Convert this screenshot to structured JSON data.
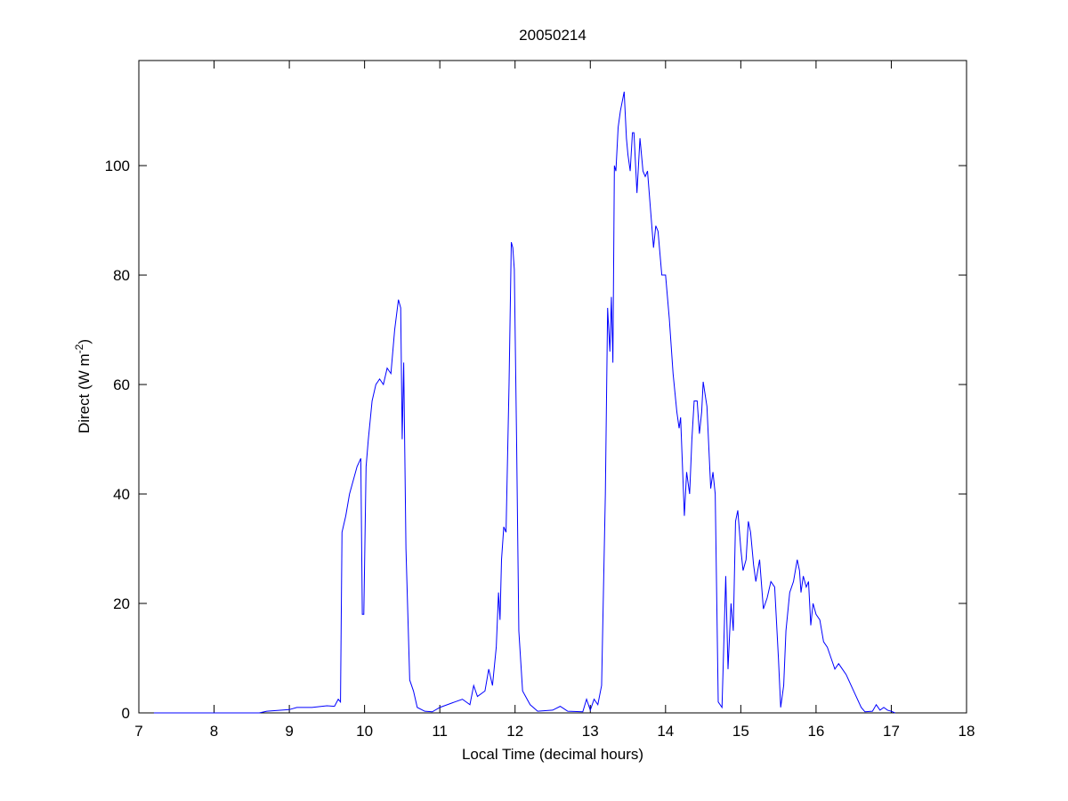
{
  "chart_data": {
    "type": "line",
    "title": "20050214",
    "xlabel": "Local Time (decimal hours)",
    "ylabel": [
      "Direct (W m",
      "-2",
      ")"
    ],
    "xlim": [
      7,
      18
    ],
    "ylim": [
      0,
      119.2
    ],
    "xticks": [
      7,
      8,
      9,
      10,
      11,
      12,
      13,
      14,
      15,
      16,
      17,
      18
    ],
    "yticks": [
      0,
      20,
      40,
      60,
      80,
      100
    ],
    "grid": false,
    "x": [
      7.2,
      8.6,
      8.7,
      9.0,
      9.1,
      9.3,
      9.5,
      9.6,
      9.65,
      9.68,
      9.7,
      9.75,
      9.8,
      9.9,
      9.95,
      9.97,
      9.99,
      10.02,
      10.05,
      10.1,
      10.15,
      10.2,
      10.25,
      10.3,
      10.35,
      10.4,
      10.45,
      10.48,
      10.5,
      10.52,
      10.55,
      10.6,
      10.65,
      10.7,
      10.8,
      10.9,
      11.0,
      11.2,
      11.3,
      11.4,
      11.45,
      11.5,
      11.6,
      11.65,
      11.7,
      11.75,
      11.78,
      11.8,
      11.82,
      11.85,
      11.88,
      11.92,
      11.95,
      11.97,
      11.99,
      12.02,
      12.05,
      12.1,
      12.2,
      12.3,
      12.5,
      12.6,
      12.7,
      12.9,
      12.95,
      13.0,
      13.05,
      13.1,
      13.15,
      13.2,
      13.23,
      13.26,
      13.28,
      13.3,
      13.32,
      13.34,
      13.37,
      13.4,
      13.45,
      13.48,
      13.5,
      13.53,
      13.56,
      13.58,
      13.62,
      13.66,
      13.7,
      13.73,
      13.76,
      13.8,
      13.84,
      13.87,
      13.9,
      13.95,
      14.0,
      14.05,
      14.1,
      14.15,
      14.18,
      14.2,
      14.25,
      14.28,
      14.32,
      14.35,
      14.38,
      14.42,
      14.45,
      14.48,
      14.5,
      14.55,
      14.6,
      14.63,
      14.66,
      14.7,
      14.75,
      14.8,
      14.83,
      14.87,
      14.9,
      14.93,
      14.96,
      15.0,
      15.03,
      15.07,
      15.1,
      15.13,
      15.17,
      15.2,
      15.25,
      15.3,
      15.35,
      15.4,
      15.45,
      15.5,
      15.53,
      15.57,
      15.6,
      15.65,
      15.7,
      15.75,
      15.78,
      15.8,
      15.83,
      15.87,
      15.9,
      15.93,
      15.96,
      16.0,
      16.05,
      16.1,
      16.15,
      16.2,
      16.25,
      16.3,
      16.35,
      16.4,
      16.5,
      16.6,
      16.65,
      16.75,
      16.8,
      16.85,
      16.9,
      16.95,
      17.0,
      17.05
    ],
    "series": [
      {
        "color": "#0000ff",
        "values": [
          0,
          0,
          0.3,
          0.6,
          1.0,
          1.0,
          1.3,
          1.2,
          2.5,
          2,
          33,
          36,
          40,
          45,
          46.5,
          18,
          18,
          45,
          50,
          57,
          60,
          61,
          60,
          63,
          62,
          70,
          75.5,
          74,
          50,
          64,
          30,
          6,
          4,
          1,
          0.3,
          0.2,
          1,
          2,
          2.5,
          1.5,
          5,
          3,
          4,
          8,
          5,
          12,
          22,
          17,
          28,
          34,
          33,
          60,
          86,
          85,
          81,
          50,
          15,
          4,
          1.5,
          0.3,
          0.5,
          1.2,
          0.3,
          0.2,
          2.5,
          0.5,
          2.5,
          1.5,
          5,
          40,
          74,
          66,
          76,
          64,
          100,
          99,
          107,
          110,
          113.5,
          105,
          102,
          99,
          106,
          106,
          95,
          105,
          99,
          98,
          99,
          92,
          85,
          89,
          88,
          80,
          80,
          72,
          62,
          55,
          52,
          54,
          36,
          44,
          40,
          50,
          57,
          57,
          51,
          55,
          60.5,
          56,
          41,
          44,
          40,
          2,
          1,
          25,
          8,
          20,
          15,
          35,
          37,
          30,
          26,
          28,
          35,
          33,
          27,
          24,
          28,
          19,
          21,
          24,
          23,
          10,
          1,
          5,
          15,
          22,
          24,
          28,
          26,
          22,
          25,
          23,
          24,
          16,
          20,
          18,
          17,
          13,
          12,
          10,
          8,
          9,
          8,
          7,
          4,
          1,
          0.2,
          0.3,
          1.5,
          0.5,
          1,
          0.5,
          0.3,
          0
        ]
      }
    ]
  }
}
